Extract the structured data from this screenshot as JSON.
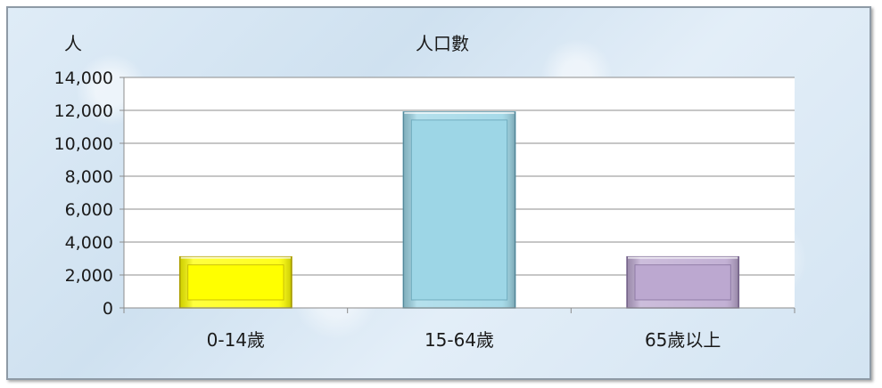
{
  "chart_data": {
    "type": "bar",
    "title": "人口數",
    "ylabel": "人",
    "xlabel": "",
    "categories": [
      "0-14歲",
      "15-64歲",
      "65歲以上"
    ],
    "values": [
      3100,
      11900,
      3100
    ],
    "ylim": [
      0,
      14000
    ],
    "yticks": [
      0,
      2000,
      4000,
      6000,
      8000,
      10000,
      12000,
      14000
    ],
    "ytick_labels": [
      "0",
      "2,000",
      "4,000",
      "6,000",
      "8,000",
      "10,000",
      "12,000",
      "14,000"
    ],
    "grid": true,
    "legend": "none",
    "bar_colors": [
      "#ffff00",
      "#9dd6e6",
      "#bca8d0"
    ],
    "bar_edge_colors": [
      "#b8a800",
      "#5d9aae",
      "#7e6a96"
    ]
  }
}
